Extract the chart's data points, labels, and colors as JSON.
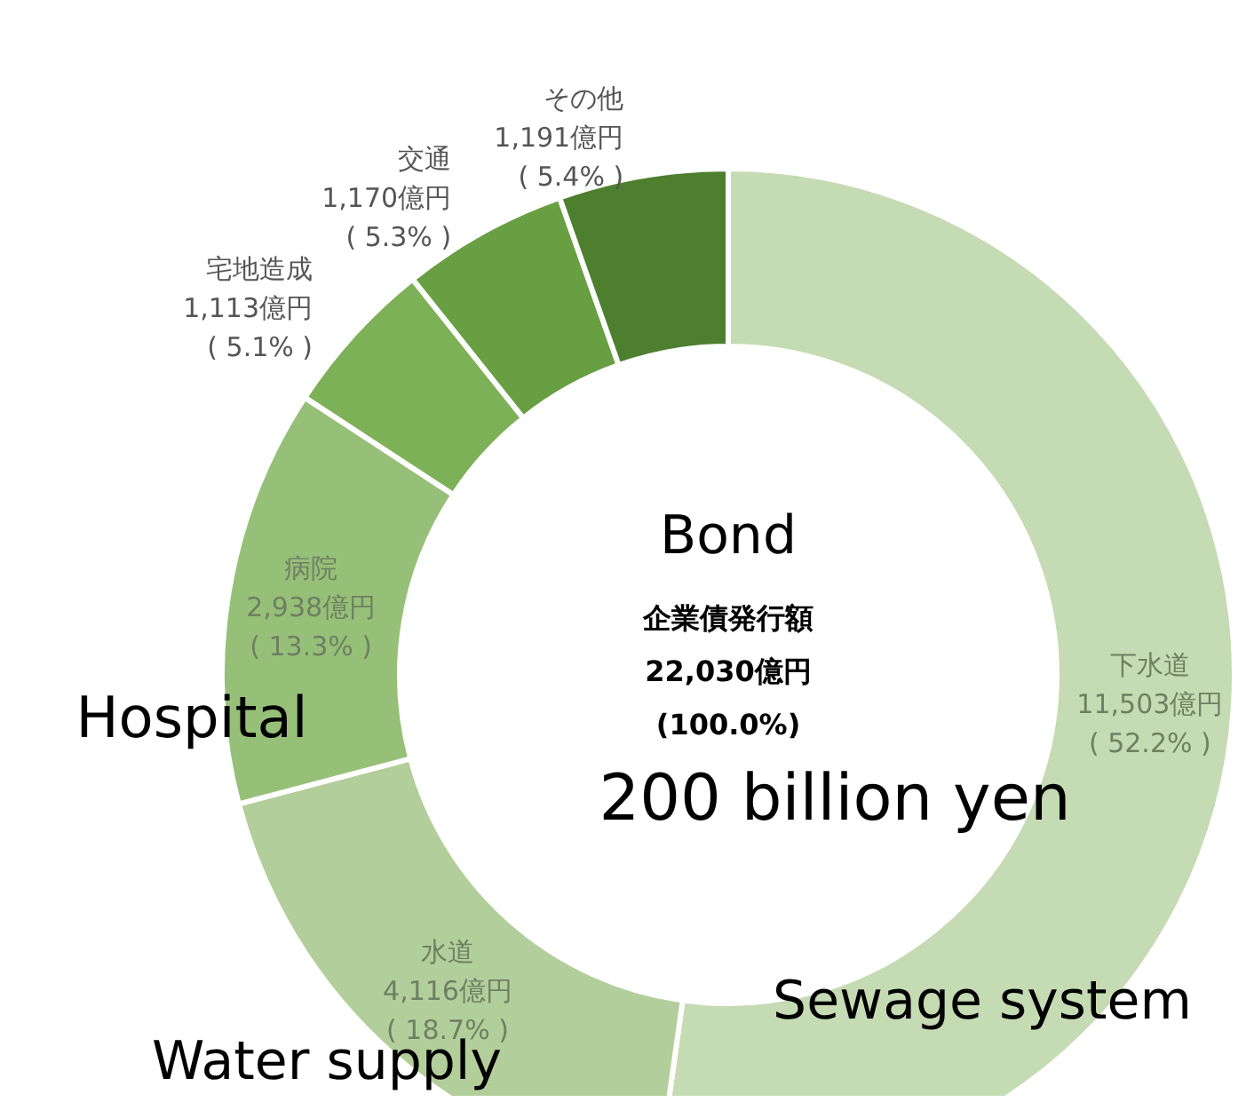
{
  "chart_data": {
    "type": "donut",
    "categories": [
      "下水道",
      "水道",
      "病院",
      "宅地造成",
      "交通",
      "その他"
    ],
    "values": [
      11503,
      4116,
      2938,
      1113,
      1170,
      1191
    ],
    "value_labels": [
      "11,503億円\n( 52.2% )",
      "4,116億円\n( 18.7% )",
      "2,938億円\n( 13.3% )",
      "1,113億円\n( 5.1% )",
      "1,170億円\n( 5.3% )",
      "1,191億円\n( 5.4% )"
    ],
    "colors": [
      "#c5dbb3",
      "#b2cf9b",
      "#96c078",
      "#7db158",
      "#689f42",
      "#4d7f2f"
    ],
    "title": "企業債発行額",
    "annotations": [
      "Bond",
      "22,030億円",
      "(100.0%)",
      "200 billion yen",
      "Hospital",
      "Sewage system",
      "Water supply"
    ],
    "legend": false
  }
}
